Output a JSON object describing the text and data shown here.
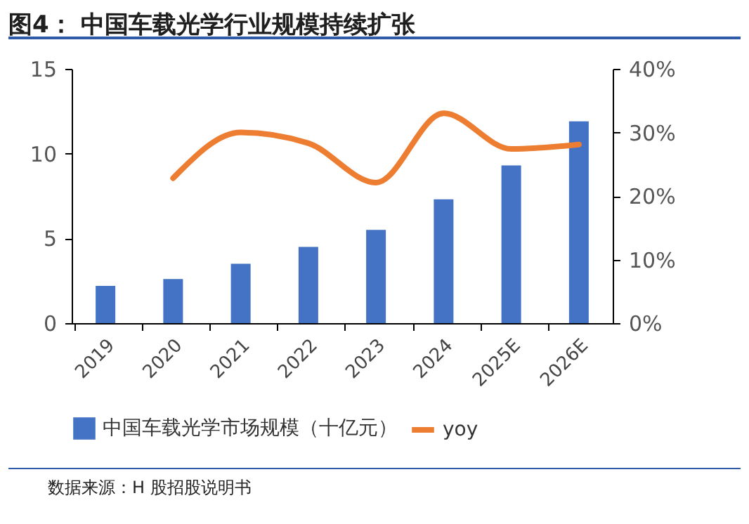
{
  "chart_data": {
    "type": "bar",
    "title": "图4：  中国车载光学行业规模持续扩张",
    "categories": [
      "2019",
      "2020",
      "2021",
      "2022",
      "2023",
      "2024",
      "2025E",
      "2026E"
    ],
    "series": [
      {
        "name": "中国车载光学市场规模（十亿元）",
        "color": "#4472c4",
        "values": [
          2.2,
          2.6,
          3.5,
          4.5,
          5.5,
          7.3,
          9.3,
          11.9
        ]
      },
      {
        "name": "yoy",
        "type": "line",
        "axis": "y2",
        "color": "#ed7d31",
        "values": [
          null,
          22.8,
          30,
          28.3,
          22.1,
          33,
          27.4,
          28.1
        ]
      }
    ],
    "ylim": [
      0,
      15
    ],
    "yticks": [
      0,
      5,
      10,
      15
    ],
    "y2lim": [
      0,
      40
    ],
    "y2ticks": [
      {
        "value": 0,
        "label": "0%"
      },
      {
        "value": 10,
        "label": "10%"
      },
      {
        "value": 20,
        "label": "20%"
      },
      {
        "value": 30,
        "label": "30%"
      },
      {
        "value": 40,
        "label": "40%"
      }
    ],
    "legend": "bottom",
    "grid": false,
    "marker": "none",
    "annotations": [
      "数据来源：H 股招股说明书"
    ]
  }
}
